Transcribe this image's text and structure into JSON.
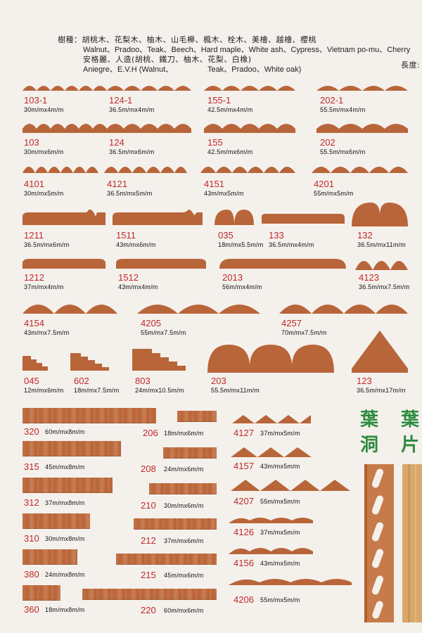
{
  "header": {
    "line1": "樹種：胡桃木、花梨木、柚木、山毛櫸、楓木、栓木、美檜、越檜、櫻桃",
    "line2": "Walnut、Pradoo、Teak、Beech、Hard maple、White ash、Cypress、Vietnam po-mu、Cherry",
    "line3": "安格麗、人造(胡桃、鐵刀、柚木、花梨、白橡)",
    "line4a": "Aniegre、E.V.H (Walnut、",
    "line4b": "Teak、Pradoo、White oak)",
    "length_label": "長度:"
  },
  "items": [
    {
      "code": "103-1",
      "dim": "30m/mx4m/m"
    },
    {
      "code": "124-1",
      "dim": "36.5m/mx4m/m"
    },
    {
      "code": "155-1",
      "dim": "42.5m/mx4m/m"
    },
    {
      "code": "202-1",
      "dim": "55.5m/mx4m/m"
    },
    {
      "code": "103",
      "dim": "30m/mx6m/m"
    },
    {
      "code": "124",
      "dim": "36.5m/mx6m/m"
    },
    {
      "code": "155",
      "dim": "42.5m/mx6m/m"
    },
    {
      "code": "202",
      "dim": "55.5m/mx6m/m"
    },
    {
      "code": "4101",
      "dim": "30m/mx5m/m"
    },
    {
      "code": "4121",
      "dim": "36.5m/mx5m/m"
    },
    {
      "code": "4151",
      "dim": "43m/mx5m/m"
    },
    {
      "code": "4201",
      "dim": "55m/mx5m/m"
    },
    {
      "code": "1211",
      "dim": "36.5m/mx6m/m"
    },
    {
      "code": "1511",
      "dim": "43m/mx6m/m"
    },
    {
      "code": "035",
      "dim": "18m/mx5.5m/m"
    },
    {
      "code": "133",
      "dim": "36.5m/mx4m/m"
    },
    {
      "code": "132",
      "dim": "36.5m/mx11m/m"
    },
    {
      "code": "1212",
      "dim": "37m/mx4m/m"
    },
    {
      "code": "1512",
      "dim": "43m/mx4m/m"
    },
    {
      "code": "2013",
      "dim": "56m/mx4m/m"
    },
    {
      "code": "4123",
      "dim": "36.5m/mx7.5m/m"
    },
    {
      "code": "4154",
      "dim": "43m/mx7.5m/m"
    },
    {
      "code": "4205",
      "dim": "55m/mx7.5m/m"
    },
    {
      "code": "4257",
      "dim": "70m/mx7.5m/m"
    },
    {
      "code": "045",
      "dim": "12m/mx6m/m"
    },
    {
      "code": "602",
      "dim": "18m/mx7.5m/m"
    },
    {
      "code": "803",
      "dim": "24m/mx10.5m/m"
    },
    {
      "code": "203",
      "dim": "55.5m/mx11m/m"
    },
    {
      "code": "123",
      "dim": "36.5m/mx17m/m"
    },
    {
      "code": "320",
      "dim": "60m/mx8m/m"
    },
    {
      "code": "206",
      "dim": "18m/mx6m/m"
    },
    {
      "code": "315",
      "dim": "45m/mx8m/m"
    },
    {
      "code": "208",
      "dim": "24m/mx6m/m"
    },
    {
      "code": "312",
      "dim": "37m/mx8m/m"
    },
    {
      "code": "210",
      "dim": "30m/mx6m/m"
    },
    {
      "code": "310",
      "dim": "30m/mx8m/m"
    },
    {
      "code": "212",
      "dim": "37m/mx6m/m"
    },
    {
      "code": "380",
      "dim": "24m/mx8m/m"
    },
    {
      "code": "215",
      "dim": "45m/mx6m/m"
    },
    {
      "code": "360",
      "dim": "18m/mx8m/m"
    },
    {
      "code": "220",
      "dim": "60m/mx6m/m"
    },
    {
      "code": "4127",
      "dim": "37m/mx5m/m"
    },
    {
      "code": "4157",
      "dim": "43m/mx5m/m"
    },
    {
      "code": "4207",
      "dim": "55m/mx5m/m"
    },
    {
      "code": "4126",
      "dim": "37m/mx5m/m"
    },
    {
      "code": "4156",
      "dim": "43m/mx5m/m"
    },
    {
      "code": "4206",
      "dim": "55m/mx5m/m"
    }
  ],
  "side": {
    "col1_char1": "葉",
    "col1_char2": "洞",
    "col2_char1": "葉",
    "col2_char2": "片"
  },
  "colors": {
    "code": "#c0282a",
    "wood": "#b9653a",
    "green": "#2e8b3e"
  }
}
